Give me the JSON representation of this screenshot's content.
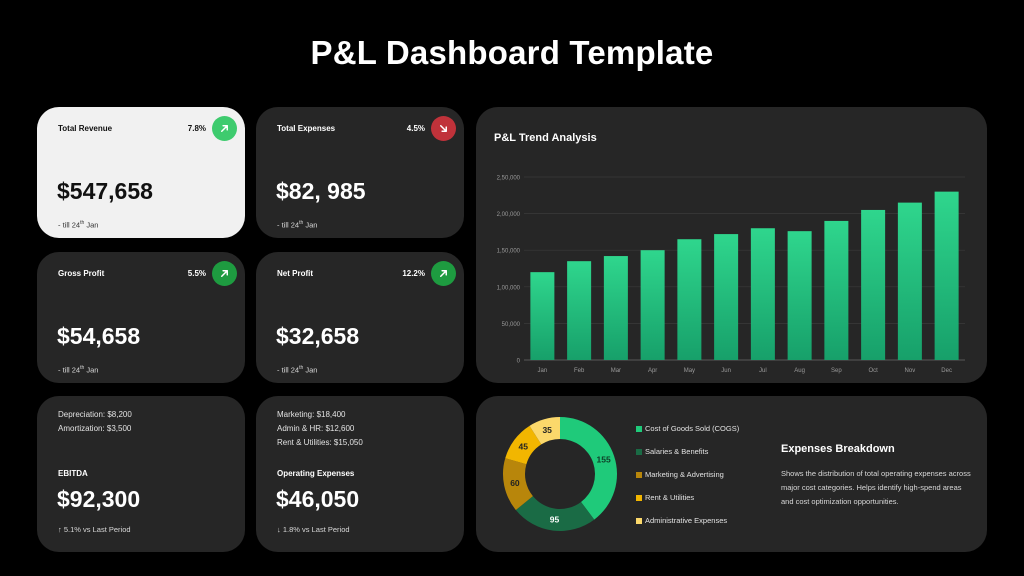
{
  "page": {
    "title": "P&L Dashboard Template"
  },
  "kpis": [
    {
      "label": "Total Revenue",
      "pct": "7.8%",
      "direction": "up",
      "arrow_color": "#3ecb6e",
      "value": "$547,658",
      "sub_prefix": "- till 24",
      "sub_sup": "th",
      "sub_suffix": " Jan"
    },
    {
      "label": "Total Expenses",
      "pct": "4.5%",
      "direction": "down",
      "arrow_color": "#c0323a",
      "value": "$82, 985",
      "sub_prefix": "- till 24",
      "sub_sup": "th",
      "sub_suffix": " Jan"
    },
    {
      "label": "Gross Profit",
      "pct": "5.5%",
      "direction": "up",
      "arrow_color": "#1e9b40",
      "value": "$54,658",
      "sub_prefix": "- till 24",
      "sub_sup": "th",
      "sub_suffix": " Jan"
    },
    {
      "label": "Net Profit",
      "pct": "12.2%",
      "direction": "up",
      "arrow_color": "#1e9b40",
      "value": "$32,658",
      "sub_prefix": "- till 24",
      "sub_sup": "th",
      "sub_suffix": " Jan"
    }
  ],
  "ebitda": {
    "details": [
      "Depreciation:  $8,200",
      "Amortization:  $3,500"
    ],
    "label": "EBITDA",
    "value": "$92,300",
    "change": "↑  5.1% vs Last Period"
  },
  "opex": {
    "details": [
      "Marketing: $18,400",
      "Admin & HR: $12,600",
      "Rent & Utilities: $15,050"
    ],
    "label": "Operating Expenses",
    "value": "$46,050",
    "change": "↓  1.8% vs Last Period"
  },
  "trend": {
    "title": "P&L Trend Analysis"
  },
  "chart_data": [
    {
      "type": "bar",
      "title": "P&L Trend Analysis",
      "categories": [
        "Jan",
        "Feb",
        "Mar",
        "Apr",
        "May",
        "Jun",
        "Jul",
        "Aug",
        "Sep",
        "Oct",
        "Nov",
        "Dec"
      ],
      "values": [
        120000,
        135000,
        142000,
        150000,
        165000,
        172000,
        180000,
        176000,
        190000,
        205000,
        215000,
        230000
      ],
      "ylim": [
        0,
        250000
      ],
      "yticks": [
        0,
        50000,
        100000,
        150000,
        200000,
        250000
      ],
      "ytick_labels": [
        "0",
        "50,000",
        "1,00,000",
        "1,50,000",
        "2,00,000",
        "2,50,000"
      ],
      "grid": true,
      "bar_color_top": "#2fd68d",
      "bar_color_bottom": "#17a06a"
    },
    {
      "type": "pie",
      "title": "Expenses Breakdown",
      "donut": true,
      "slices": [
        {
          "label": "Cost of Goods Sold (COGS)",
          "value": 155,
          "color": "#1fca7a"
        },
        {
          "label": "Salaries & Benefits",
          "value": 95,
          "color": "#1a6b45"
        },
        {
          "label": "Marketing & Advertising",
          "value": 60,
          "color": "#b8860b"
        },
        {
          "label": "Rent & Utilities",
          "value": 45,
          "color": "#f2b600"
        },
        {
          "label": "Administrative Expenses",
          "value": 35,
          "color": "#fbd86b"
        }
      ]
    }
  ],
  "breakdown": {
    "title": "Expenses Breakdown",
    "description": "Shows the distribution of total operating expenses across major cost categories. Helps identify high-spend areas and cost optimization opportunities."
  }
}
